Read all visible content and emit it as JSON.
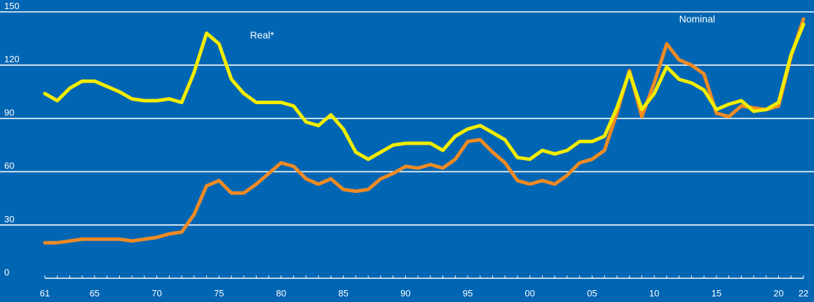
{
  "chart_data": {
    "type": "line",
    "title": "",
    "xlabel": "",
    "ylabel": "",
    "ylim": [
      0,
      150
    ],
    "yticks": [
      "0",
      "30",
      "60",
      "90",
      "120",
      "150"
    ],
    "xlim": [
      1961,
      2022
    ],
    "xticks": [
      {
        "year": 1961,
        "label": "61"
      },
      {
        "year": 1965,
        "label": "65"
      },
      {
        "year": 1970,
        "label": "70"
      },
      {
        "year": 1975,
        "label": "75"
      },
      {
        "year": 1980,
        "label": "80"
      },
      {
        "year": 1985,
        "label": "85"
      },
      {
        "year": 1990,
        "label": "90"
      },
      {
        "year": 1995,
        "label": "95"
      },
      {
        "year": 2000,
        "label": "00"
      },
      {
        "year": 2005,
        "label": "05"
      },
      {
        "year": 2010,
        "label": "10"
      },
      {
        "year": 2015,
        "label": "15"
      },
      {
        "year": 2020,
        "label": "20"
      },
      {
        "year": 2022,
        "label": "22"
      }
    ],
    "grid": true,
    "x": [
      1961,
      1962,
      1963,
      1964,
      1965,
      1966,
      1967,
      1968,
      1969,
      1970,
      1971,
      1972,
      1973,
      1974,
      1975,
      1976,
      1977,
      1978,
      1979,
      1980,
      1981,
      1982,
      1983,
      1984,
      1985,
      1986,
      1987,
      1988,
      1989,
      1990,
      1991,
      1992,
      1993,
      1994,
      1995,
      1996,
      1997,
      1998,
      1999,
      2000,
      2001,
      2002,
      2003,
      2004,
      2005,
      2006,
      2007,
      2008,
      2009,
      2010,
      2011,
      2012,
      2013,
      2014,
      2015,
      2016,
      2017,
      2018,
      2019,
      2020,
      2021,
      2022
    ],
    "series": [
      {
        "name": "Real*",
        "color": "#f2ec00",
        "values": [
          104,
          100,
          107,
          111,
          111,
          108,
          105,
          101,
          100,
          100,
          101,
          99,
          116,
          138,
          132,
          112,
          104,
          99,
          99,
          99,
          97,
          88,
          86,
          92,
          84,
          71,
          67,
          71,
          75,
          76,
          76,
          76,
          72,
          80,
          84,
          86,
          82,
          78,
          68,
          67,
          72,
          70,
          72,
          77,
          77,
          80,
          96,
          116,
          95,
          104,
          119,
          112,
          110,
          106,
          95,
          98,
          100,
          94,
          95,
          99,
          126,
          143
        ],
        "label_pos": {
          "year": 1977.5,
          "value": 135
        }
      },
      {
        "name": "Nominal",
        "color": "#f08a24",
        "values": [
          20,
          20,
          21,
          22,
          22,
          22,
          22,
          21,
          22,
          23,
          25,
          26,
          36,
          52,
          55,
          48,
          48,
          53,
          59,
          65,
          63,
          56,
          53,
          56,
          50,
          49,
          50,
          56,
          59,
          63,
          62,
          64,
          62,
          67,
          77,
          78,
          71,
          65,
          55,
          53,
          55,
          53,
          58,
          65,
          67,
          72,
          93,
          117,
          91,
          110,
          132,
          123,
          120,
          115,
          93,
          91,
          97,
          96,
          95,
          97,
          125,
          146
        ],
        "label_pos": {
          "year": 2012,
          "value": 144
        }
      }
    ]
  }
}
